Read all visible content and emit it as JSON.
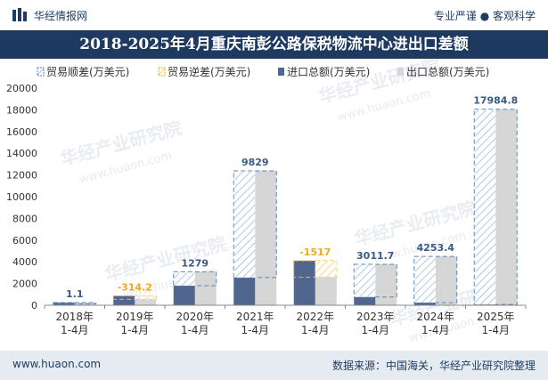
{
  "header": {
    "brand": "华经情报网",
    "tagline": "专业严谨 ● 客观科学"
  },
  "footer": {
    "site": "www.huaon.com",
    "source": "数据来源：中国海关，华经产业研究院整理"
  },
  "watermark": {
    "text": "华经产业研究院",
    "url": "www.huaon.com"
  },
  "colors": {
    "title_bg": "#1f3a60",
    "surplus": "#5b87b8",
    "deficit": "#f2b321",
    "imports": "#51668f",
    "exports": "#d6d6d6",
    "label": "#3a5a86",
    "label_deficit": "#f0a81e"
  },
  "chart_data": {
    "type": "bar",
    "title": "2018-2025年4月重庆南彭公路保税物流中心进出口差额",
    "categories": [
      "2018年\n1-4月",
      "2019年\n1-4月",
      "2020年\n1-4月",
      "2021年\n1-4月",
      "2022年\n1-4月",
      "2023年\n1-4月",
      "2024年\n1-4月",
      "2025年\n1-4月"
    ],
    "series": [
      {
        "name": "贸易顺差(万美元)",
        "values": [
          1.1,
          null,
          1279,
          9829,
          null,
          3011.7,
          4253.4,
          17984.8
        ]
      },
      {
        "name": "贸易逆差(万美元)",
        "values": [
          null,
          314.2,
          null,
          null,
          1517,
          null,
          null,
          null
        ]
      },
      {
        "name": "进口总额(万美元)",
        "values": [
          240,
          860,
          1800,
          2550,
          4100,
          760,
          240,
          70
        ]
      },
      {
        "name": "出口总额(万美元)",
        "values": [
          241,
          546,
          3079,
          12379,
          2583,
          3771,
          4493,
          18055
        ]
      }
    ],
    "data_labels": [
      "1.1",
      "-314.2",
      "1279",
      "9829",
      "-1517",
      "3011.7",
      "4253.4",
      "17984.8"
    ],
    "ylim": [
      0,
      20000
    ],
    "yticks": [
      0,
      2000,
      4000,
      6000,
      8000,
      10000,
      12000,
      14000,
      16000,
      18000,
      20000
    ],
    "legend_position": "top",
    "grid": false
  }
}
